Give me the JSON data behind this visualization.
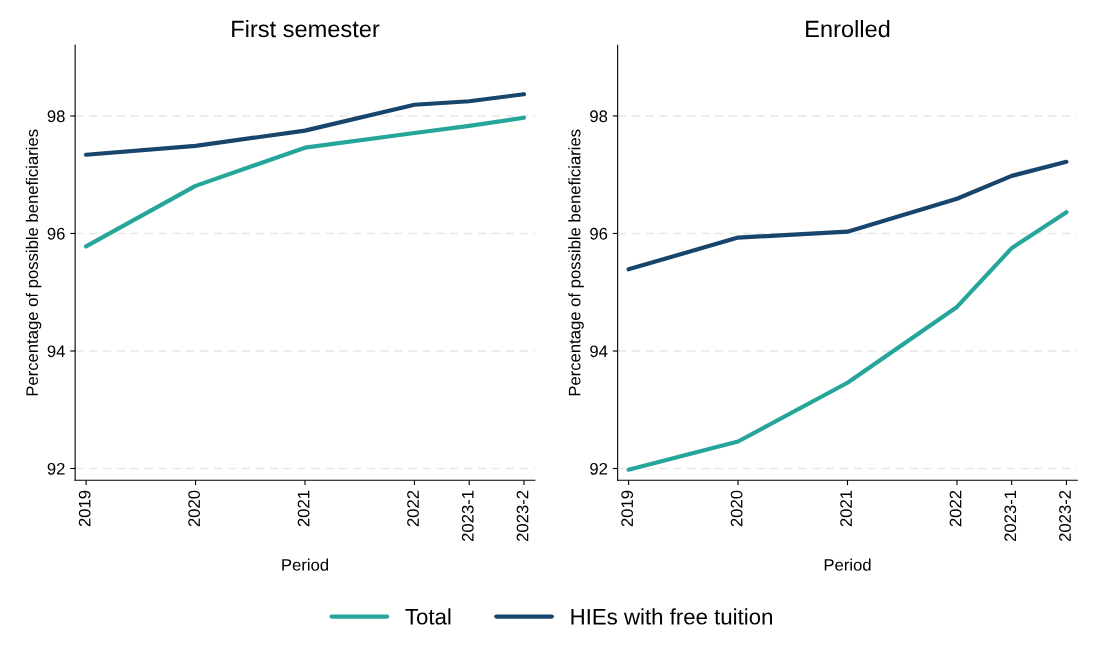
{
  "chart_data": [
    {
      "type": "line",
      "title": "First semester",
      "xlabel": "Period",
      "ylabel": "Percentage of possible beneficiaries",
      "xlim": [
        2018.9,
        2023.1
      ],
      "xticks": [
        {
          "value": 2019,
          "label": "2019"
        },
        {
          "value": 2020,
          "label": "2020"
        },
        {
          "value": 2021,
          "label": "2021"
        },
        {
          "value": 2022,
          "label": "2022"
        },
        {
          "value": 2022.5,
          "label": "2023-1"
        },
        {
          "value": 2023,
          "label": "2023-2"
        }
      ],
      "ylim": [
        91.8,
        99.2
      ],
      "yticks": [
        92,
        94,
        96,
        98
      ],
      "grid": "y",
      "legend": "bottom",
      "x": [
        2019,
        2020,
        2021,
        2022,
        2022.5,
        2023
      ],
      "series": [
        {
          "name": "Total",
          "color": "#26a69a",
          "values": [
            95.78,
            96.81,
            97.46,
            97.71,
            97.83,
            97.97
          ]
        },
        {
          "name": "HIEs with free tuition",
          "color": "#17456b",
          "values": [
            97.34,
            97.49,
            97.75,
            98.19,
            98.25,
            98.37
          ]
        }
      ]
    },
    {
      "type": "line",
      "title": "Enrolled",
      "xlabel": "Period",
      "ylabel": "Percentage of possible beneficiaries",
      "xlim": [
        2018.9,
        2023.1
      ],
      "xticks": [
        {
          "value": 2019,
          "label": "2019"
        },
        {
          "value": 2020,
          "label": "2020"
        },
        {
          "value": 2021,
          "label": "2021"
        },
        {
          "value": 2022,
          "label": "2022"
        },
        {
          "value": 2022.5,
          "label": "2023-1"
        },
        {
          "value": 2023,
          "label": "2023-2"
        }
      ],
      "ylim": [
        91.8,
        99.2
      ],
      "yticks": [
        92,
        94,
        96,
        98
      ],
      "grid": "y",
      "x": [
        2019,
        2020,
        2021,
        2022,
        2022.5,
        2023
      ],
      "series": [
        {
          "color": "#26a69a",
          "values": [
            91.98,
            92.46,
            93.46,
            94.75,
            95.75,
            96.36
          ]
        },
        {
          "color": "#17456b",
          "values": [
            95.39,
            95.93,
            96.03,
            96.59,
            96.98,
            97.22
          ]
        }
      ]
    }
  ]
}
